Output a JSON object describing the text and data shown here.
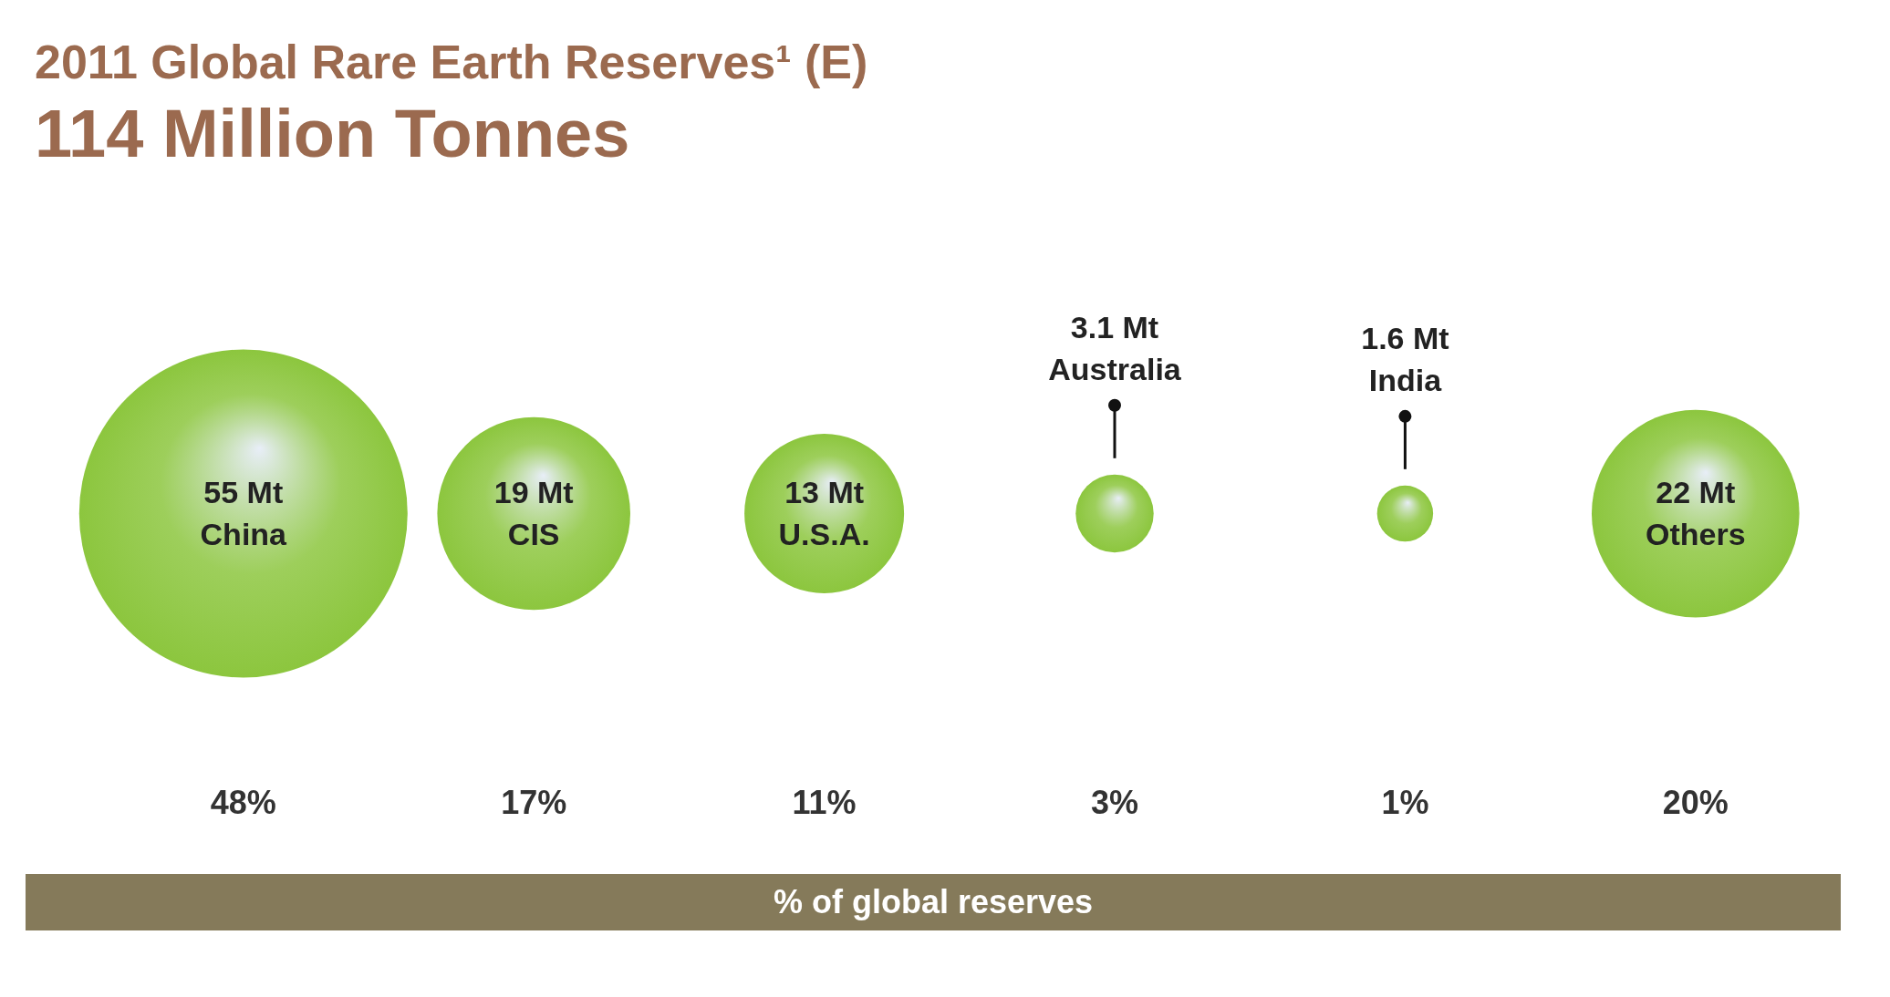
{
  "chart_data": {
    "type": "other",
    "title": "2011 Global Rare Earth Reserves¹ (E)",
    "subtitle": "114 Million Tonnes",
    "xlabel": "% of global reserves",
    "categories": [
      "China",
      "CIS",
      "U.S.A.",
      "Australia",
      "India",
      "Others"
    ],
    "series": [
      {
        "type": "bubble",
        "color": "#8cc63e",
        "values": [
          55,
          19,
          13,
          3.1,
          1.6,
          22
        ],
        "value_labels": [
          "55 Mt",
          "19 Mt",
          "13 Mt",
          "3.1 Mt",
          "1.6 Mt",
          "22 Mt"
        ]
      },
      {
        "values": [
          48,
          17,
          11,
          3,
          1,
          20
        ],
        "value_labels": [
          "48%",
          "17%",
          "11%",
          "3%",
          "1%",
          "20%"
        ]
      }
    ]
  }
}
